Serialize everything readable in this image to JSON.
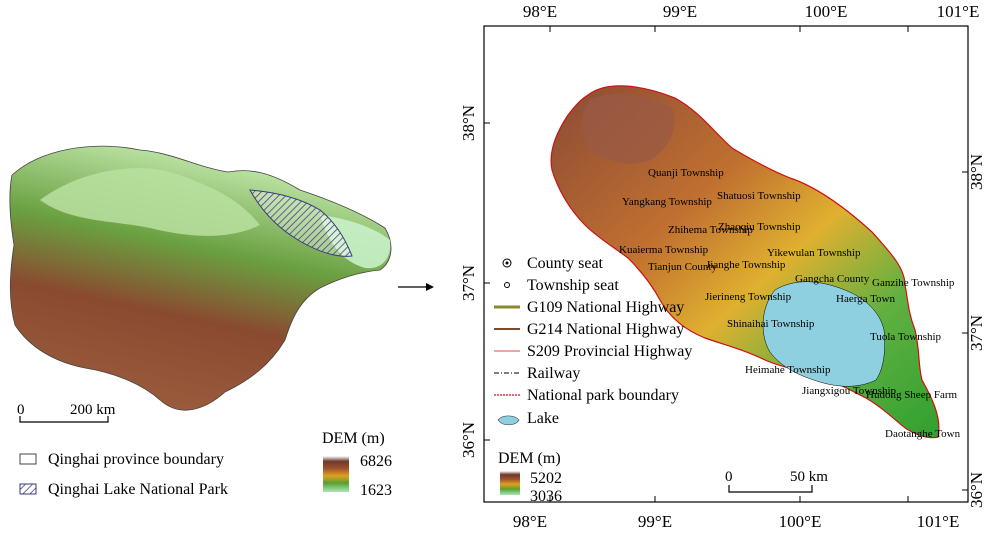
{
  "left_panel": {
    "scalebar": {
      "start": "0",
      "end": "200 km"
    },
    "legend": [
      {
        "label": "Qinghai province boundary",
        "icon": "boundary-box-icon"
      },
      {
        "label": "Qinghai Lake National Park",
        "icon": "hatched-box-icon"
      }
    ],
    "dem": {
      "title": "DEM (m)",
      "max": "6826",
      "min": "1623"
    }
  },
  "right_panel": {
    "top_ticks": [
      "98°E",
      "99°E",
      "100°E",
      "101°E"
    ],
    "bottom_ticks": [
      "98°E",
      "99°E",
      "100°E",
      "101°E"
    ],
    "left_ticks": [
      "38°N",
      "37°N",
      "36°N"
    ],
    "right_ticks": [
      "38°N",
      "37°N",
      "36°N"
    ],
    "places": [
      "Tianjun County",
      "Gangcha County",
      "Quanji Township",
      "Jianghe Township",
      "Heimahe Township",
      "Shinaihai Township",
      "Jiangxigou Township",
      "Daotanghe Town",
      "Yangkang Township",
      "Zhihema Township",
      "Kuaierma Township",
      "Tuola Township",
      "Ganzihe Township",
      "Hudong Sheep Farm",
      "Jierineng Township",
      "Shatuosi Township",
      "Zhaoqiu Township",
      "Yikewulan Township",
      "Haerga Town"
    ],
    "legend": [
      {
        "label": "County seat",
        "icon": "county-seat-icon"
      },
      {
        "label": "Township seat",
        "icon": "township-seat-icon"
      },
      {
        "label": "G109 National Highway",
        "icon": "g109-line-icon",
        "color": "#8a8a2a"
      },
      {
        "label": "G214 National Highway",
        "icon": "g214-line-icon",
        "color": "#7a4a2a"
      },
      {
        "label": "S209 Provincial Highway",
        "icon": "s209-line-icon",
        "color": "#e07070"
      },
      {
        "label": "Railway",
        "icon": "railway-line-icon"
      },
      {
        "label": "National park boundary",
        "icon": "park-boundary-icon",
        "color": "#d01010"
      },
      {
        "label": "Lake",
        "icon": "lake-icon",
        "color": "#8fd0e0"
      }
    ],
    "dem": {
      "title": "DEM (m)",
      "max": "5202",
      "min": "3036"
    },
    "scalebar": {
      "start": "0",
      "end": "50 km"
    }
  },
  "colors": {
    "lake": "#8fd0e0",
    "boundary": "#d01010"
  }
}
